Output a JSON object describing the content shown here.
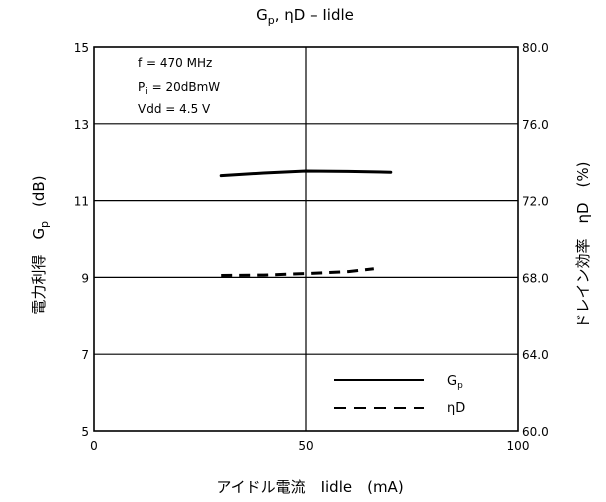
{
  "chart_data": {
    "type": "line",
    "title": {
      "main": "G",
      "main_sub": "p",
      "rest": ", ηD – Iidle"
    },
    "xlabel": "アイドル電流　Iidle　(mA)",
    "ylabel_left": "電力利得　G",
    "ylabel_left_sub": "p",
    "ylabel_left_unit": "(dB)",
    "ylabel_right": "ドレイン効率　ηD　(%)",
    "xlim": [
      0,
      100
    ],
    "ylim_left": [
      5,
      15
    ],
    "ylim_right": [
      60,
      80
    ],
    "x_ticks": [
      "0",
      "50",
      "100"
    ],
    "y_left_ticks": [
      "5",
      "7",
      "9",
      "11",
      "13",
      "15"
    ],
    "y_right_ticks": [
      "60.0",
      "64.0",
      "68.0",
      "72.0",
      "76.0",
      "80.0"
    ],
    "grid": true,
    "conditions": [
      {
        "pre": "f = 470 MHz"
      },
      {
        "pre": "P",
        "sub": "i",
        "post": " = 20dBmW"
      },
      {
        "pre": "Vdd = 4.5 V"
      }
    ],
    "series": [
      {
        "name_main": "G",
        "name_sub": "p",
        "axis": "left",
        "style": "solid",
        "x": [
          30,
          40,
          50,
          60,
          70
        ],
        "y": [
          11.65,
          11.72,
          11.77,
          11.76,
          11.74
        ]
      },
      {
        "name_main": "ηD",
        "axis": "right",
        "style": "dashed",
        "x": [
          30,
          40,
          50,
          60,
          66
        ],
        "y": [
          68.1,
          68.12,
          68.2,
          68.3,
          68.45
        ]
      }
    ],
    "colors": {
      "line": "#000000",
      "background": "#ffffff"
    }
  }
}
